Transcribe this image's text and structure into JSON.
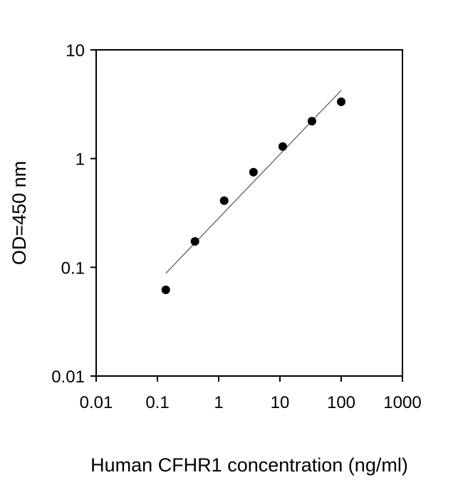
{
  "chart_data": {
    "type": "scatter",
    "title": "",
    "xlabel": "Human CFHR1 concentration (ng/ml)",
    "ylabel": "OD=450 nm",
    "xscale": "log",
    "yscale": "log",
    "xlim": [
      0.01,
      1000
    ],
    "ylim": [
      0.01,
      10
    ],
    "xticks": [
      "0.01",
      "0.1",
      "1",
      "10",
      "100",
      "1000"
    ],
    "xtick_values": [
      0.01,
      0.1,
      1,
      10,
      100,
      1000
    ],
    "yticks": [
      "0.01",
      "0.1",
      "1",
      "10"
    ],
    "ytick_values": [
      0.01,
      0.1,
      1,
      10
    ],
    "grid": false,
    "points": {
      "x": [
        0.137,
        0.41,
        1.23,
        3.7,
        11.1,
        33.3,
        100
      ],
      "y": [
        0.062,
        0.173,
        0.41,
        0.75,
        1.29,
        2.21,
        3.33
      ]
    },
    "fit_line": {
      "x": [
        0.137,
        100
      ],
      "y": [
        0.088,
        4.24
      ]
    },
    "colors": {
      "points": "#000000",
      "line": "#555555",
      "axes": "#000000"
    }
  }
}
